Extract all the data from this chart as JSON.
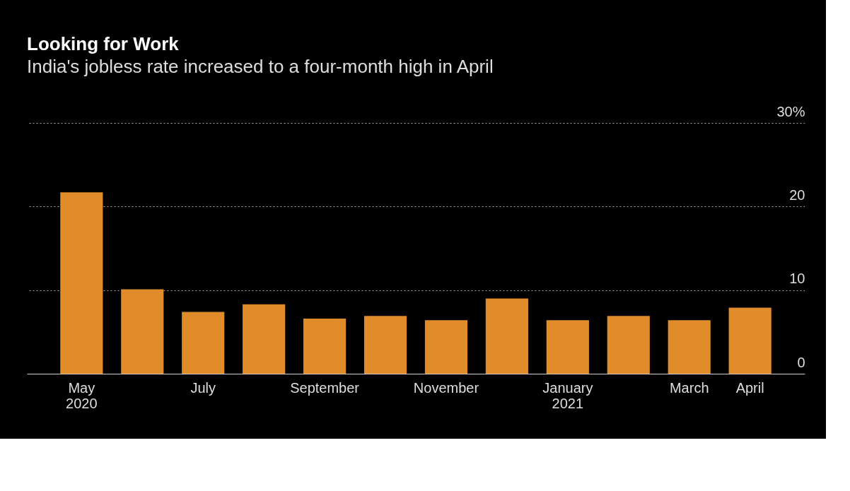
{
  "chart_data": {
    "type": "bar",
    "title": "Looking for Work",
    "subtitle": "India's jobless rate increased to a four-month high in April",
    "categories": [
      "May\n2020",
      null,
      "July",
      null,
      "September",
      null,
      "November",
      null,
      "January\n2021",
      null,
      "March",
      "April"
    ],
    "values": [
      21.7,
      10.1,
      7.4,
      8.3,
      6.6,
      6.9,
      6.4,
      9.0,
      6.4,
      6.9,
      6.4,
      7.9
    ],
    "color": "#e08c2a",
    "ylim": [
      0,
      30
    ],
    "yticks": [
      0,
      10,
      20,
      {
        "value": 30,
        "label": "30%"
      }
    ],
    "grid": "y"
  }
}
